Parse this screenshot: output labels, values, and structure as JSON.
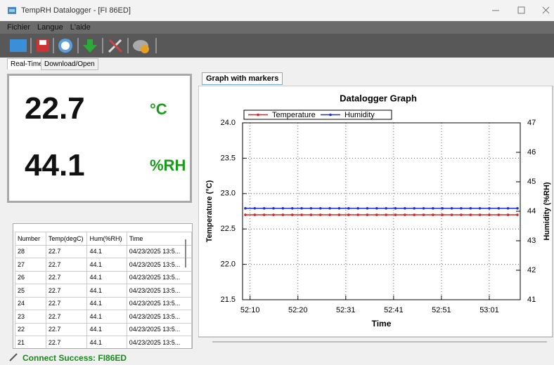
{
  "window": {
    "title": "TempRH Datalogger - [FI 86ED]"
  },
  "menu": [
    "Fichier",
    "Langue",
    "L'aide"
  ],
  "tabs": [
    "Real-Time",
    "Download/Open"
  ],
  "readout": {
    "temperature": "22.7",
    "temperature_unit": "°C",
    "humidity": "44.1",
    "humidity_unit": "%RH"
  },
  "table": {
    "columns": [
      "Number",
      "Temp(degC)",
      "Hum(%RH)",
      "Time"
    ],
    "rows": [
      [
        "28",
        "22.7",
        "44.1",
        "04/23/2025 13:5..."
      ],
      [
        "27",
        "22.7",
        "44.1",
        "04/23/2025 13:5..."
      ],
      [
        "26",
        "22.7",
        "44.1",
        "04/23/2025 13:5..."
      ],
      [
        "25",
        "22.7",
        "44.1",
        "04/23/2025 13:5..."
      ],
      [
        "24",
        "22.7",
        "44.1",
        "04/23/2025 13:5..."
      ],
      [
        "23",
        "22.7",
        "44.1",
        "04/23/2025 13:5..."
      ],
      [
        "22",
        "22.7",
        "44.1",
        "04/23/2025 13:5..."
      ],
      [
        "21",
        "22.7",
        "44.1",
        "04/23/2025 13:5..."
      ]
    ]
  },
  "graph_tab": "Graph with markers",
  "chart_data": {
    "type": "line",
    "title": "Datalogger Graph",
    "x_label": "Time",
    "y_label": "Temperature (°C)",
    "y2_label": "Humidity (%RH)",
    "x": [
      3129,
      3131,
      3133,
      3135,
      3137,
      3139,
      3141,
      3143,
      3145,
      3147,
      3149,
      3151,
      3153,
      3155,
      3157,
      3159,
      3161,
      3163,
      3165,
      3167,
      3169,
      3171,
      3173,
      3175,
      3177,
      3179,
      3181,
      3183,
      3185,
      3187
    ],
    "xlim": [
      3128.4,
      3187.6
    ],
    "xticks": [
      {
        "value": 3130,
        "label": "52:10"
      },
      {
        "value": 3140.2,
        "label": "52:20"
      },
      {
        "value": 3150.4,
        "label": "52:31"
      },
      {
        "value": 3160.6,
        "label": "52:41"
      },
      {
        "value": 3170.8,
        "label": "52:51"
      },
      {
        "value": 3181,
        "label": "53:01"
      }
    ],
    "ylim": [
      21.5,
      24
    ],
    "yticks": [
      21.5,
      {
        "value": 22,
        "label": "22.0"
      },
      22.5,
      {
        "value": 23,
        "label": "23.0"
      },
      23.5,
      {
        "value": 24,
        "label": "24.0"
      }
    ],
    "y2lim": [
      41,
      47
    ],
    "y2ticks": [
      41,
      42,
      43,
      44,
      45,
      46,
      47
    ],
    "grid": true,
    "legend": "top-left",
    "series": [
      {
        "name": "Temperature",
        "color": "#e02020",
        "values": [
          22.7,
          22.7,
          22.7,
          22.7,
          22.7,
          22.7,
          22.7,
          22.7,
          22.7,
          22.7,
          22.7,
          22.7,
          22.7,
          22.7,
          22.7,
          22.7,
          22.7,
          22.7,
          22.7,
          22.7,
          22.7,
          22.7,
          22.7,
          22.7,
          22.7,
          22.7,
          22.7,
          22.7,
          22.7,
          22.7
        ]
      },
      {
        "name": "Humidity",
        "color": "#1c2fd8",
        "axis": "y2",
        "values": [
          44.1,
          44.1,
          44.1,
          44.1,
          44.1,
          44.1,
          44.1,
          44.1,
          44.1,
          44.1,
          44.1,
          44.1,
          44.1,
          44.1,
          44.1,
          44.1,
          44.1,
          44.1,
          44.1,
          44.1,
          44.1,
          44.1,
          44.1,
          44.1,
          44.1,
          44.1,
          44.1,
          44.1,
          44.1,
          44.1
        ]
      }
    ]
  },
  "status": "Connect Success: FI86ED"
}
